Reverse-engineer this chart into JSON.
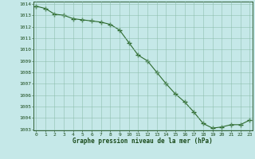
{
  "x": [
    0,
    1,
    2,
    3,
    4,
    5,
    6,
    7,
    8,
    9,
    10,
    11,
    12,
    13,
    14,
    15,
    16,
    17,
    18,
    19,
    20,
    21,
    22,
    23
  ],
  "y": [
    1013.8,
    1013.6,
    1013.1,
    1013.0,
    1012.7,
    1012.6,
    1012.5,
    1012.4,
    1012.2,
    1011.7,
    1010.6,
    1009.5,
    1009.0,
    1008.0,
    1007.0,
    1006.1,
    1005.4,
    1004.5,
    1003.5,
    1003.1,
    1003.2,
    1003.4,
    1003.4,
    1003.8
  ],
  "line_color": "#2d6a2d",
  "marker": "+",
  "marker_size": 4,
  "background_color": "#c5e8e8",
  "grid_color": "#8bbcaa",
  "xlabel": "Graphe pression niveau de la mer (hPa)",
  "xlabel_color": "#1a4a1a",
  "tick_color": "#1a4a1a",
  "ylim_min": 1003,
  "ylim_max": 1014,
  "xlim_min": 0,
  "xlim_max": 23,
  "yticks": [
    1003,
    1004,
    1005,
    1006,
    1007,
    1008,
    1009,
    1010,
    1011,
    1012,
    1013,
    1014
  ],
  "xticks": [
    0,
    1,
    2,
    3,
    4,
    5,
    6,
    7,
    8,
    9,
    10,
    11,
    12,
    13,
    14,
    15,
    16,
    17,
    18,
    19,
    20,
    21,
    22,
    23
  ]
}
